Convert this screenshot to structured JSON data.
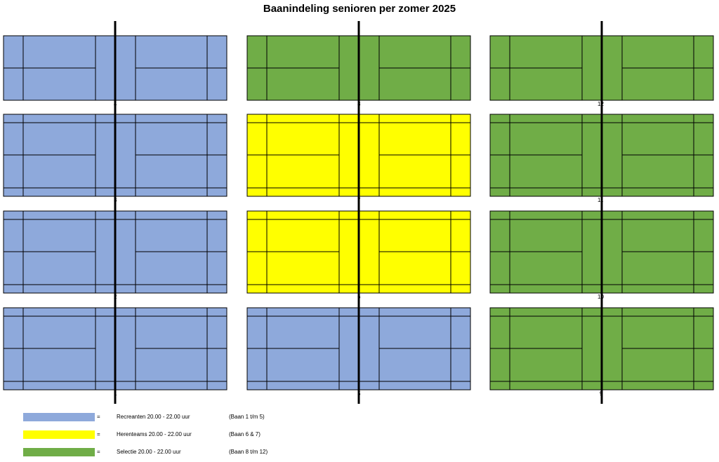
{
  "title": "Baanindeling senioren per zomer 2025",
  "colors": {
    "recreanten": "#8EA9DB",
    "herenteams": "#FFFF00",
    "selectie": "#70AD47",
    "lines": "#000000"
  },
  "courts": [
    {
      "number": "4",
      "group": "recreanten"
    },
    {
      "number": "8",
      "group": "selectie"
    },
    {
      "number": "12",
      "group": "selectie"
    },
    {
      "number": "3",
      "group": "recreanten"
    },
    {
      "number": "7",
      "group": "herenteams"
    },
    {
      "number": "11",
      "group": "selectie"
    },
    {
      "number": "2",
      "group": "recreanten"
    },
    {
      "number": "6",
      "group": "herenteams"
    },
    {
      "number": "10",
      "group": "selectie"
    },
    {
      "number": "1",
      "group": "recreanten"
    },
    {
      "number": "5",
      "group": "recreanten"
    },
    {
      "number": "9",
      "group": "selectie"
    }
  ],
  "legend": [
    {
      "group": "recreanten",
      "equals": "=",
      "label": "Recreanten 20.00 - 22.00 uur",
      "range": "(Baan 1 t/m 5)"
    },
    {
      "group": "herenteams",
      "equals": "=",
      "label": "Herenteams 20.00 - 22.00 uur",
      "range": "(Baan 6 & 7)"
    },
    {
      "group": "selectie",
      "equals": "=",
      "label": "Selectie 20.00 - 22.00 uur",
      "range": "(Baan 8 t/m 12)"
    }
  ]
}
